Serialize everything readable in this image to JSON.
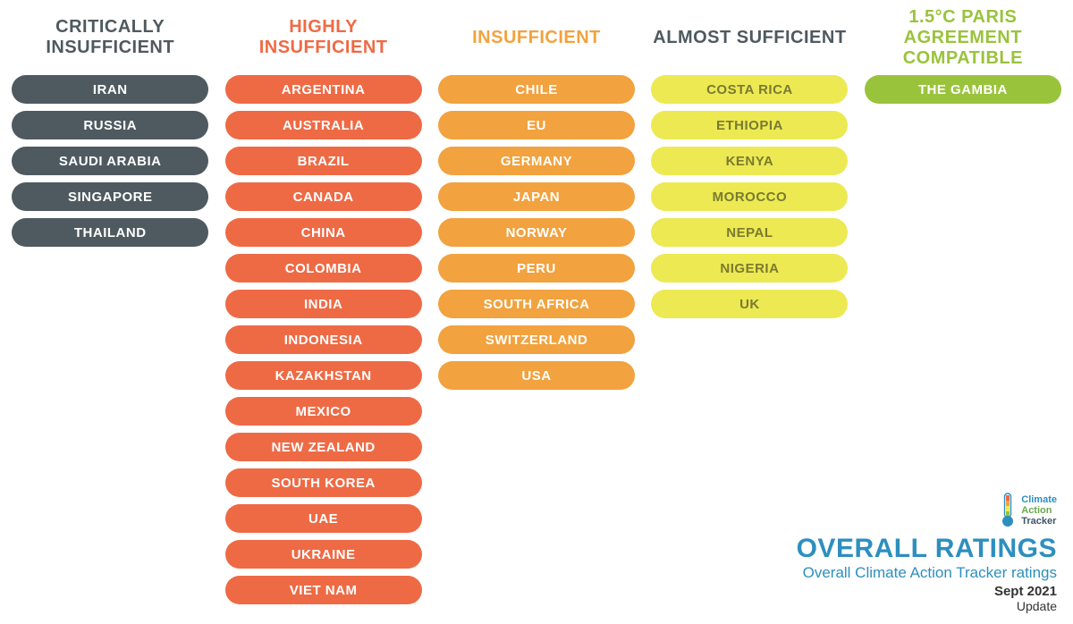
{
  "categories": [
    {
      "header": "CRITICALLY INSUFFICIENT",
      "header_color": "#4e5a5f",
      "pill_bg": "#4e5a5f",
      "pill_text": "#ffffff",
      "countries": [
        "IRAN",
        "RUSSIA",
        "SAUDI ARABIA",
        "SINGAPORE",
        "THAILAND"
      ]
    },
    {
      "header": "HIGHLY INSUFFICIENT",
      "header_color": "#ee6a45",
      "pill_bg": "#ee6a45",
      "pill_text": "#ffffff",
      "countries": [
        "ARGENTINA",
        "AUSTRALIA",
        "BRAZIL",
        "CANADA",
        "CHINA",
        "COLOMBIA",
        "INDIA",
        "INDONESIA",
        "KAZAKHSTAN",
        "MEXICO",
        "NEW ZEALAND",
        "SOUTH KOREA",
        "UAE",
        "UKRAINE",
        "VIET NAM"
      ]
    },
    {
      "header": "INSUFFICIENT",
      "header_color": "#f2a23e",
      "pill_bg": "#f2a23e",
      "pill_text": "#ffffff",
      "countries": [
        "CHILE",
        "EU",
        "GERMANY",
        "JAPAN",
        "NORWAY",
        "PERU",
        "SOUTH AFRICA",
        "SWITZERLAND",
        "USA"
      ]
    },
    {
      "header": "ALMOST SUFFICIENT",
      "header_color": "#4e5a5f",
      "pill_bg": "#ece953",
      "pill_text": "#7a7a30",
      "countries": [
        "COSTA RICA",
        "ETHIOPIA",
        "KENYA",
        "MOROCCO",
        "NEPAL",
        "NIGERIA",
        "UK"
      ]
    },
    {
      "header": "1.5°C PARIS AGREEMENT COMPATIBLE",
      "header_color": "#9ac33c",
      "pill_bg": "#9ac33c",
      "pill_text": "#ffffff",
      "countries": [
        "THE GAMBIA"
      ]
    }
  ],
  "logo": {
    "line1": "Climate",
    "line2": "Action",
    "line3": "Tracker"
  },
  "footer": {
    "title": "OVERALL RATINGS",
    "title_color": "#2d8fbf",
    "subtitle": "Overall Climate Action Tracker ratings",
    "subtitle_color": "#2d8fbf",
    "date": "Sept 2021",
    "update": "Update"
  }
}
